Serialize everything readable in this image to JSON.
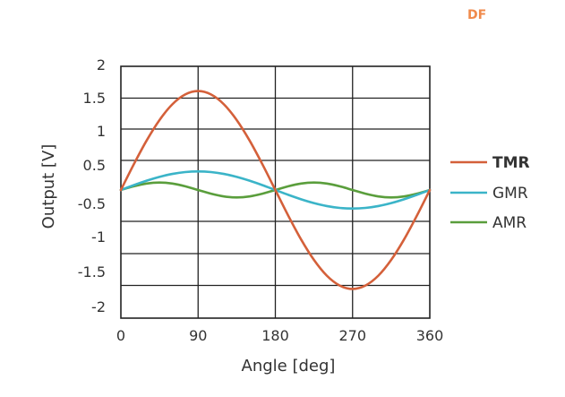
{
  "watermark": "DF",
  "chart_data": {
    "type": "line",
    "title": "",
    "xlabel": "Angle [deg]",
    "ylabel": "Output [V]",
    "x_ticks": [
      0,
      90,
      180,
      270,
      360
    ],
    "y_tick_labels": [
      "2",
      "1.5",
      "1",
      "0.5",
      "-0.5",
      "-1",
      "-1.5",
      "-2"
    ],
    "xlim": [
      0,
      360
    ],
    "grid": true,
    "legend_position": "right",
    "series": [
      {
        "name": "TMR",
        "color": "#d4603a",
        "bold": true,
        "x": [
          0,
          15,
          30,
          45,
          60,
          75,
          90,
          105,
          120,
          135,
          150,
          165,
          180,
          195,
          210,
          225,
          240,
          255,
          270,
          285,
          300,
          315,
          330,
          345,
          360
        ],
        "y": [
          0,
          0.414,
          0.8,
          1.131,
          1.386,
          1.545,
          1.6,
          1.545,
          1.386,
          1.131,
          0.8,
          0.414,
          0,
          -0.414,
          -0.8,
          -1.131,
          -1.386,
          -1.545,
          -1.6,
          -1.545,
          -1.386,
          -1.131,
          -0.8,
          -0.414,
          0
        ]
      },
      {
        "name": "GMR",
        "color": "#3bb4c8",
        "bold": false,
        "x": [
          0,
          15,
          30,
          45,
          60,
          75,
          90,
          105,
          120,
          135,
          150,
          165,
          180,
          195,
          210,
          225,
          240,
          255,
          270,
          285,
          300,
          315,
          330,
          345,
          360
        ],
        "y": [
          0,
          0.078,
          0.15,
          0.212,
          0.26,
          0.29,
          0.3,
          0.29,
          0.26,
          0.212,
          0.15,
          0.078,
          0,
          -0.078,
          -0.15,
          -0.212,
          -0.26,
          -0.29,
          -0.3,
          -0.29,
          -0.26,
          -0.212,
          -0.15,
          -0.078,
          0
        ]
      },
      {
        "name": "AMR",
        "color": "#5a9e3c",
        "bold": false,
        "x": [
          0,
          15,
          30,
          45,
          60,
          75,
          90,
          105,
          120,
          135,
          150,
          165,
          180,
          195,
          210,
          225,
          240,
          255,
          270,
          285,
          300,
          315,
          330,
          345,
          360
        ],
        "y": [
          0,
          0.06,
          0.104,
          0.12,
          0.104,
          0.06,
          0,
          -0.06,
          -0.104,
          -0.12,
          -0.104,
          -0.06,
          0,
          0.06,
          0.104,
          0.12,
          0.104,
          0.06,
          0,
          -0.06,
          -0.104,
          -0.12,
          -0.104,
          -0.06,
          0
        ]
      }
    ]
  }
}
